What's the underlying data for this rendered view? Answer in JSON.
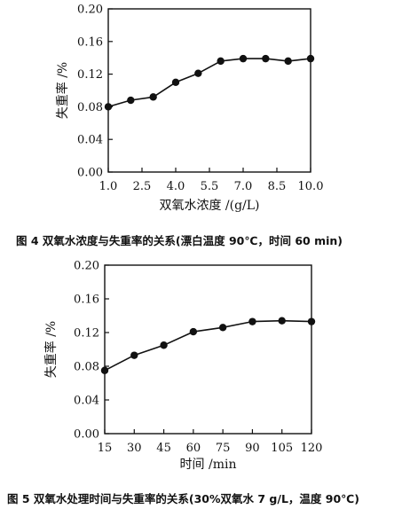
{
  "charts": [
    {
      "caption": "图 4   双氧水浓度与失重率的关系(漂白温度 90℃，时间 60 min)"
    },
    {
      "caption": "图 5   双氧水处理时间与失重率的关系(30%双氧水 7 g/L，温度 90℃)"
    }
  ],
  "chart_data": [
    {
      "type": "line",
      "xlabel": "双氧水浓度 /(g/L)",
      "ylabel": "失重率 /%",
      "xlim": [
        1.0,
        10.0
      ],
      "ylim": [
        0.0,
        0.2
      ],
      "xticks": [
        "1.0",
        "2.5",
        "4.0",
        "5.5",
        "7.0",
        "8.5",
        "10.0"
      ],
      "yticks": [
        "0.00",
        "0.04",
        "0.08",
        "0.12",
        "0.16",
        "0.20"
      ],
      "grid": false,
      "x": [
        1.0,
        2.0,
        3.0,
        4.0,
        5.0,
        6.0,
        7.0,
        8.0,
        9.0,
        10.0
      ],
      "y": [
        0.08,
        0.088,
        0.092,
        0.11,
        0.121,
        0.136,
        0.139,
        0.139,
        0.136,
        0.139
      ]
    },
    {
      "type": "line",
      "xlabel": "时间 /min",
      "ylabel": "失重率 /%",
      "xlim": [
        15,
        120
      ],
      "ylim": [
        0.0,
        0.2
      ],
      "xticks": [
        "15",
        "30",
        "45",
        "60",
        "75",
        "90",
        "105",
        "120"
      ],
      "yticks": [
        "0.00",
        "0.04",
        "0.08",
        "0.12",
        "0.16",
        "0.20"
      ],
      "grid": false,
      "x": [
        15,
        30,
        45,
        60,
        75,
        90,
        105,
        120
      ],
      "y": [
        0.075,
        0.093,
        0.105,
        0.121,
        0.126,
        0.133,
        0.134,
        0.133
      ]
    }
  ]
}
